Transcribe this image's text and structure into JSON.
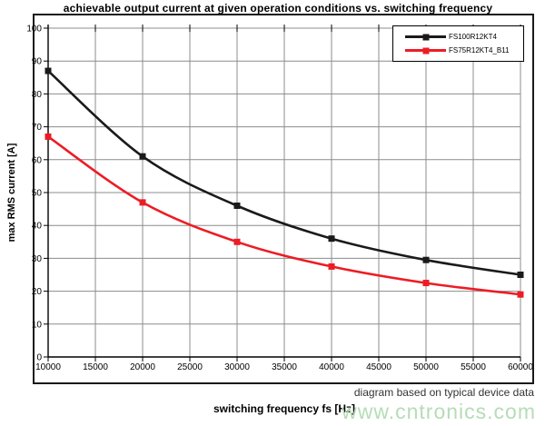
{
  "title": "achievable output current at given operation conditions vs. switching frequency",
  "footnote": "diagram based on typical device data",
  "watermark": "www.cntronics.com",
  "colors": {
    "series_black": "#1a1a1a",
    "series_red": "#ed1c24",
    "grid": "#8c8c8c",
    "axis": "#000000",
    "watermark_green": "#b6dcb6",
    "footnote_gray": "#333333"
  },
  "chart_data": {
    "type": "line",
    "title": "achievable output current at given operation conditions vs. switching frequency",
    "xlabel": "switching frequency fs [Hz]",
    "ylabel": "max RMS current [A]",
    "x": [
      10000,
      20000,
      30000,
      40000,
      50000,
      60000
    ],
    "series": [
      {
        "name": "FS100R12KT4",
        "color": "#1a1a1a",
        "values": [
          87,
          61,
          46,
          36,
          29.5,
          25
        ]
      },
      {
        "name": "FS75R12KT4_B11",
        "color": "#ed1c24",
        "values": [
          67,
          47,
          35,
          27.5,
          22.5,
          19
        ]
      }
    ],
    "xlim": [
      10000,
      60000
    ],
    "ylim": [
      0,
      100
    ],
    "x_ticks": [
      10000,
      15000,
      20000,
      25000,
      30000,
      35000,
      40000,
      45000,
      50000,
      55000,
      60000
    ],
    "y_ticks": [
      0,
      10,
      20,
      30,
      40,
      50,
      60,
      70,
      80,
      90,
      100
    ],
    "grid": true,
    "legend_position": "top-right",
    "marker": "square"
  }
}
